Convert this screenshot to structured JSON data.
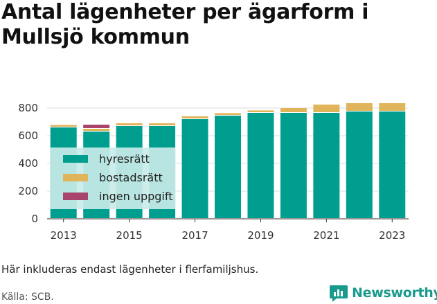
{
  "title": "Antal lägenheter per ägarform i Mullsjö kommun",
  "note": "Här inkluderas endast lägenheter i flerfamiljshus.",
  "source": "Källa: SCB.",
  "logo": {
    "text": "Newsworthy",
    "icon": "newsworthy-chart-icon",
    "color": "#1a9a8c"
  },
  "chart_data": {
    "type": "bar",
    "stacked": true,
    "categories": [
      "2013",
      "2014",
      "2015",
      "2016",
      "2017",
      "2018",
      "2019",
      "2020",
      "2021",
      "2022",
      "2023"
    ],
    "series": [
      {
        "name": "hyresrätt",
        "color": "#009e8f",
        "values": [
          660,
          630,
          670,
          670,
          720,
          745,
          765,
          765,
          765,
          775,
          775
        ]
      },
      {
        "name": "bostadsrätt",
        "color": "#e0b45a",
        "values": [
          18,
          20,
          20,
          20,
          20,
          18,
          18,
          35,
          60,
          60,
          60
        ]
      },
      {
        "name": "ingen uppgift",
        "color": "#a8446e",
        "values": [
          5,
          30,
          0,
          0,
          0,
          0,
          0,
          0,
          0,
          0,
          0
        ]
      }
    ],
    "ylim": [
      0,
      850
    ],
    "yticks": [
      0,
      200,
      400,
      600,
      800
    ],
    "xtick_labels": [
      "2013",
      "2015",
      "2017",
      "2019",
      "2021",
      "2023"
    ],
    "grid": true,
    "legend": "inside-left",
    "legend_background": "#c8ebe8"
  }
}
